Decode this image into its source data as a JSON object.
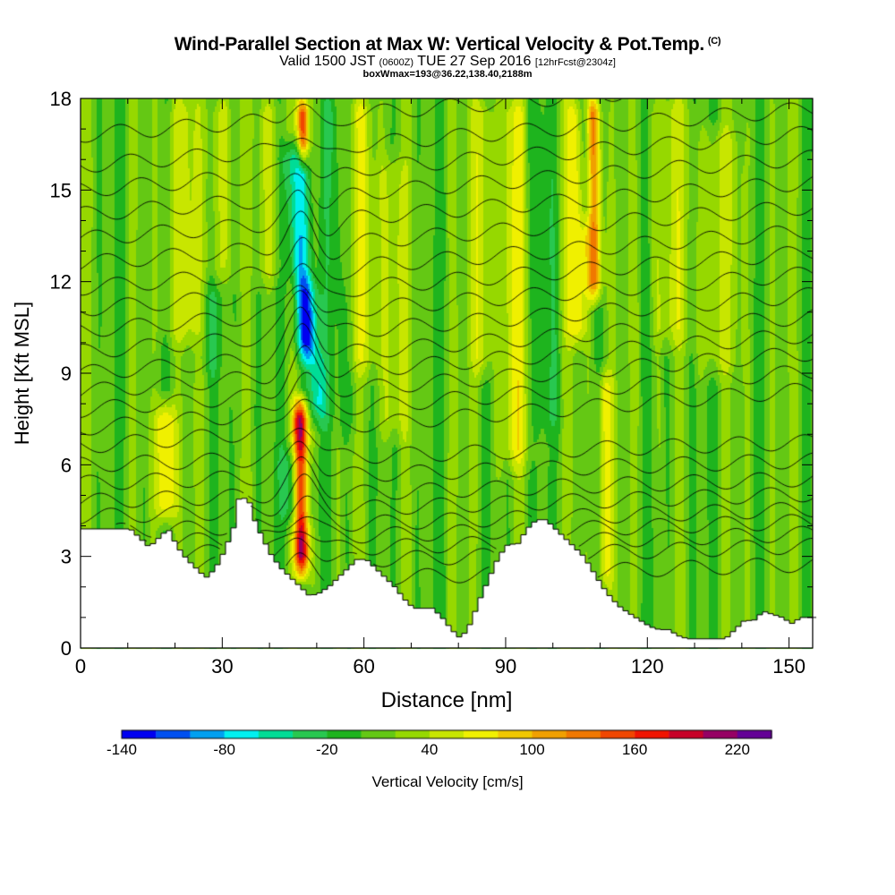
{
  "title": {
    "main": "Wind-Parallel Section at Max W: Vertical Velocity & Pot.Temp.",
    "copyright": "(C)",
    "valid_prefix": "Valid 1500 JST",
    "valid_zulu": "(0600Z)",
    "valid_date": "TUE 27 Sep 2016",
    "forecast": "[12hrFcst@2304z]",
    "box": "boxWmax=193@36.22,138.40,2188m"
  },
  "chart_data": {
    "type": "heatmap",
    "xlabel": "Distance [nm]",
    "ylabel": "Height [Kft MSL]",
    "xlim": [
      0,
      155
    ],
    "ylim": [
      0,
      18
    ],
    "x_ticks": [
      0,
      30,
      60,
      90,
      120,
      150
    ],
    "y_ticks": [
      0,
      3,
      6,
      9,
      12,
      15,
      18
    ],
    "colorbar": {
      "label": "Vertical Velocity [cm/s]",
      "ticks": [
        -140,
        -80,
        -20,
        40,
        100,
        160,
        220
      ],
      "levels": [
        -140,
        -120,
        -100,
        -80,
        -60,
        -40,
        -20,
        0,
        20,
        40,
        60,
        80,
        100,
        120,
        140,
        160,
        180,
        200,
        220
      ],
      "colors": [
        "#0000f0",
        "#0050f0",
        "#00a0f0",
        "#00f0f0",
        "#00dc96",
        "#28c850",
        "#1eb41e",
        "#64c814",
        "#96d800",
        "#c8e600",
        "#f0f000",
        "#f0c800",
        "#f0a000",
        "#f07800",
        "#f04600",
        "#f01400",
        "#c80028",
        "#960064",
        "#640096"
      ]
    },
    "terrain": [
      [
        0,
        3.9
      ],
      [
        10,
        3.9
      ],
      [
        12,
        3.6
      ],
      [
        14,
        3.3
      ],
      [
        16,
        3.6
      ],
      [
        18,
        3.9
      ],
      [
        20,
        3.3
      ],
      [
        22,
        2.9
      ],
      [
        24,
        2.6
      ],
      [
        26,
        2.3
      ],
      [
        28,
        2.6
      ],
      [
        30,
        3.2
      ],
      [
        32,
        4
      ],
      [
        33,
        4.9
      ],
      [
        35,
        4.9
      ],
      [
        36,
        4.3
      ],
      [
        38,
        3.6
      ],
      [
        40,
        3
      ],
      [
        42,
        2.6
      ],
      [
        44,
        2.3
      ],
      [
        46,
        2
      ],
      [
        48,
        1.7
      ],
      [
        50,
        1.8
      ],
      [
        52,
        2
      ],
      [
        54,
        2.3
      ],
      [
        56,
        2.6
      ],
      [
        58,
        2.9
      ],
      [
        60,
        2.9
      ],
      [
        62,
        2.6
      ],
      [
        64,
        2.3
      ],
      [
        66,
        2
      ],
      [
        68,
        1.6
      ],
      [
        70,
        1.3
      ],
      [
        74,
        1.3
      ],
      [
        76,
        1
      ],
      [
        78,
        0.6
      ],
      [
        80,
        0.3
      ],
      [
        82,
        0.8
      ],
      [
        84,
        1.6
      ],
      [
        86,
        2.3
      ],
      [
        88,
        3
      ],
      [
        90,
        3.4
      ],
      [
        92,
        3.4
      ],
      [
        94,
        3.9
      ],
      [
        96,
        4.2
      ],
      [
        98,
        4.2
      ],
      [
        100,
        3.9
      ],
      [
        102,
        3.6
      ],
      [
        104,
        3.3
      ],
      [
        106,
        3
      ],
      [
        108,
        2.5
      ],
      [
        110,
        2
      ],
      [
        112,
        1.6
      ],
      [
        114,
        1.3
      ],
      [
        116,
        1.1
      ],
      [
        118,
        0.9
      ],
      [
        120,
        0.7
      ],
      [
        122,
        0.6
      ],
      [
        124,
        0.6
      ],
      [
        126,
        0.4
      ],
      [
        128,
        0.3
      ],
      [
        130,
        0.3
      ],
      [
        132,
        0.3
      ],
      [
        136,
        0.3
      ],
      [
        138,
        0.6
      ],
      [
        140,
        0.9
      ],
      [
        142,
        0.9
      ],
      [
        144,
        1.2
      ],
      [
        146,
        1.1
      ],
      [
        148,
        1
      ],
      [
        150,
        0.8
      ],
      [
        152,
        1
      ],
      [
        155,
        1
      ]
    ],
    "updraft_streaks": [
      {
        "x": 46.5,
        "width": 1.5,
        "y0": 2.5,
        "y1": 8,
        "w": 200
      },
      {
        "x": 47.5,
        "width": 1.2,
        "y0": 16,
        "y1": 18,
        "w": 150
      },
      {
        "x": 18,
        "width": 2,
        "y0": 4.2,
        "y1": 8,
        "w": 90
      },
      {
        "x": 109,
        "width": 1.5,
        "y0": 11.5,
        "y1": 18,
        "w": 130
      },
      {
        "x": 105,
        "width": 2,
        "y0": 10,
        "y1": 18,
        "w": 70
      },
      {
        "x": 111,
        "width": 1.5,
        "y0": 2,
        "y1": 9,
        "w": 60
      },
      {
        "x": 22,
        "width": 4,
        "y0": 10,
        "y1": 18,
        "w": 40
      },
      {
        "x": 29,
        "width": 3,
        "y0": 12,
        "y1": 18,
        "w": 45
      },
      {
        "x": 40,
        "width": 3,
        "y0": 12,
        "y1": 18,
        "w": 35
      },
      {
        "x": 60,
        "width": 3,
        "y0": 9,
        "y1": 18,
        "w": 40
      },
      {
        "x": 66,
        "width": 3,
        "y0": 7,
        "y1": 16,
        "w": 35
      },
      {
        "x": 85,
        "width": 2,
        "y0": 9,
        "y1": 18,
        "w": 50
      },
      {
        "x": 92,
        "width": 3,
        "y0": 6,
        "y1": 18,
        "w": 45
      },
      {
        "x": 125,
        "width": 4,
        "y0": 10,
        "y1": 18,
        "w": 35
      },
      {
        "x": 135,
        "width": 4,
        "y0": 9,
        "y1": 17,
        "w": 35
      }
    ],
    "downdraft_streaks": [
      {
        "x": 47.5,
        "width": 2.2,
        "y0": 9.5,
        "y1": 12,
        "w": -140
      },
      {
        "x": 46.5,
        "width": 2.5,
        "y0": 12,
        "y1": 16.5,
        "w": -90
      },
      {
        "x": 49,
        "width": 2,
        "y0": 7.5,
        "y1": 9.5,
        "w": -70
      },
      {
        "x": 108,
        "width": 1.5,
        "y0": 14,
        "y1": 18,
        "w": -60
      },
      {
        "x": 44,
        "width": 3,
        "y0": 4,
        "y1": 6.5,
        "w": -60
      },
      {
        "x": 27,
        "width": 3,
        "y0": 9,
        "y1": 18,
        "w": -20
      },
      {
        "x": 55,
        "width": 3,
        "y0": 7,
        "y1": 18,
        "w": -20
      },
      {
        "x": 98,
        "width": 3,
        "y0": 7,
        "y1": 18,
        "w": -20
      }
    ],
    "isentropes": {
      "count": 24,
      "base_heights": [
        2.0,
        2.6,
        3.0,
        3.4,
        3.8,
        4.3,
        4.8,
        5.4,
        6.0,
        6.6,
        7.2,
        7.8,
        8.4,
        9.0,
        9.7,
        10.4,
        11.1,
        11.8,
        12.6,
        13.4,
        14.2,
        15.0,
        15.8,
        16.8
      ],
      "wave_center_nm": 47,
      "wave_amplitude_kft": 1.6
    }
  }
}
